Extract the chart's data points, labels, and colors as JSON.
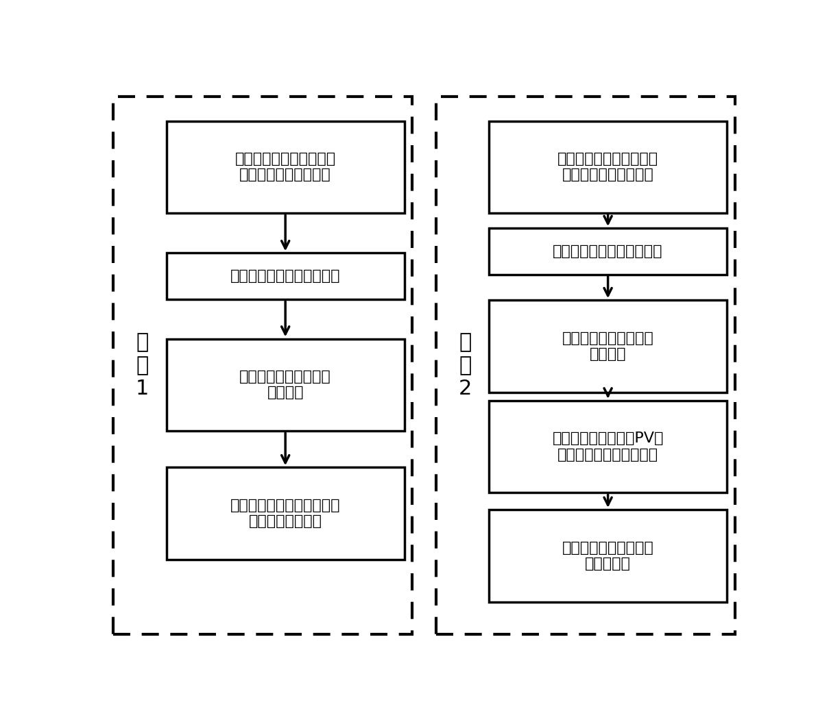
{
  "background_color": "#ffffff",
  "dashed_border_color": "#000000",
  "box_border_color": "#000000",
  "box_fill_color": "#ffffff",
  "text_color": "#000000",
  "arrow_color": "#000000",
  "scheme1_label": "方\n案\n1",
  "scheme2_label": "方\n案\n2",
  "scheme1_boxes": [
    "根据输送通道的限额，分\n区域计算有功不平衡量",
    "通过强化学选择动作发电机",
    "寻找无功可能不平衡的\n位置集合",
    "通过强化学习动作选择开关\n附近的电容电抗器"
  ],
  "scheme2_boxes": [
    "根据输送通道的限额，分\n区域计算有功不平衡量",
    "通过强化学选择动作发电机",
    "寻找无功可能不平衡的\n位置集合",
    "通过强化学习动作加PV节\n点，获得可能不足的无功",
    "收敛后等效添加附近的\n电容电抗器"
  ],
  "fig_width": 12.09,
  "fig_height": 10.57,
  "dpi": 100,
  "font_size_box": 16,
  "font_size_label": 18
}
